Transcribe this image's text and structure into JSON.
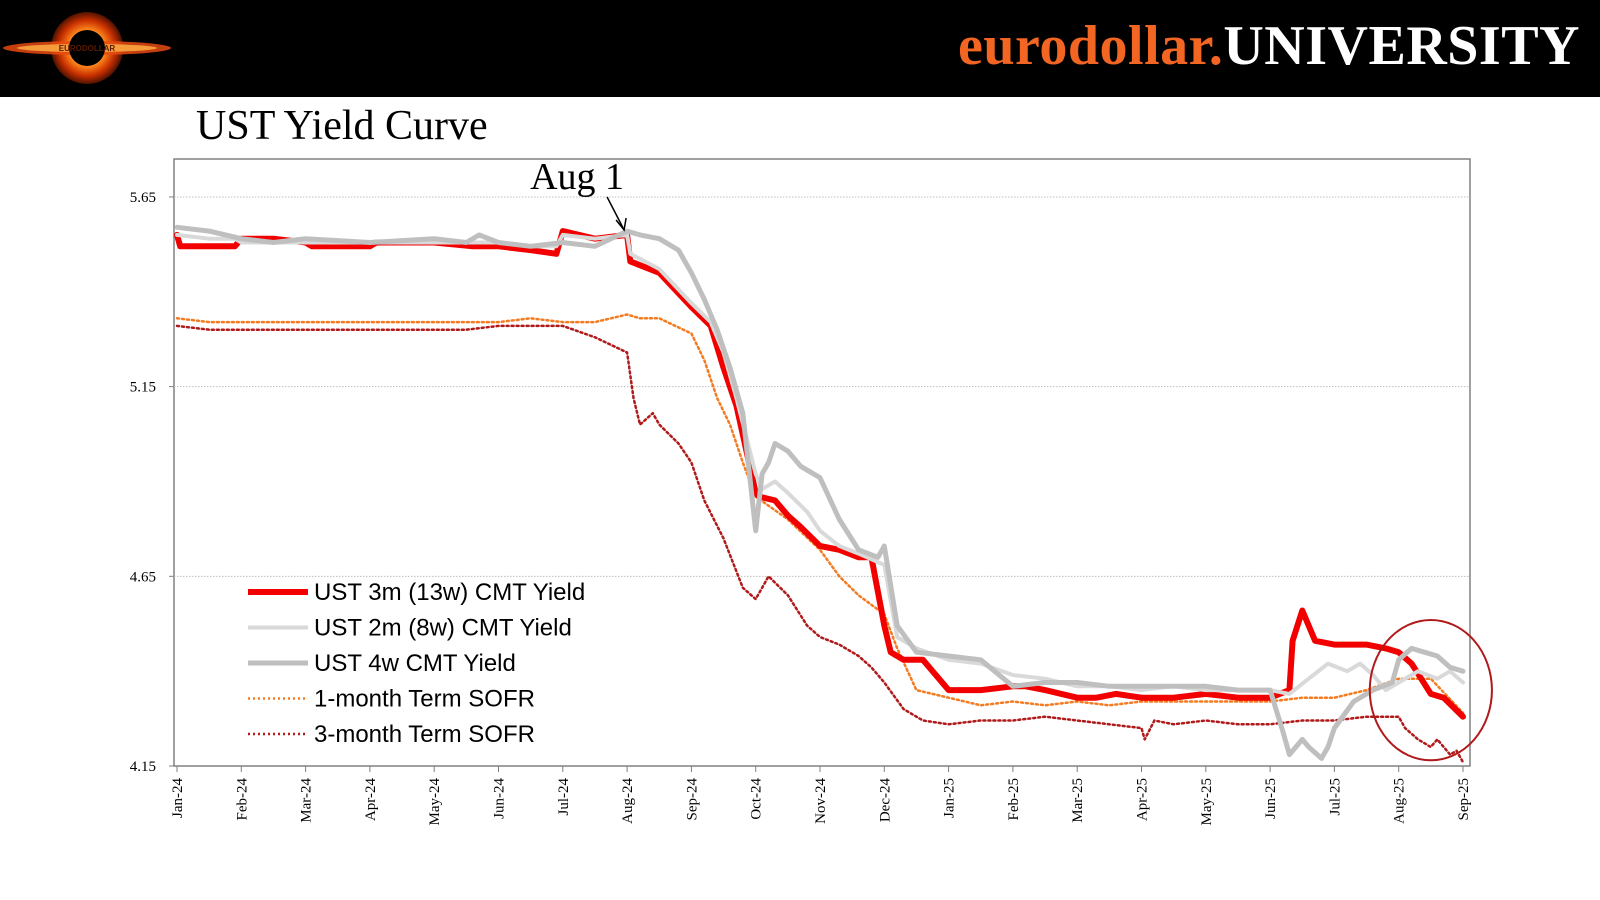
{
  "header": {
    "brand_part1": "eurodollar.",
    "brand_part2": "UNIVERSITY",
    "logo_text": "EURODOLLAR"
  },
  "colors": {
    "brand_orange": "#f26522",
    "ust3m": "#f20000",
    "ust2m": "#d9d9d9",
    "ust4w": "#bfbfbf",
    "sofr1m": "#f47b20",
    "sofr3m": "#b01a1a"
  },
  "chart_data": {
    "type": "line",
    "title": "UST Yield Curve",
    "annotation": "Aug 1",
    "y_range": [
      4.15,
      5.75
    ],
    "y_ticks": [
      4.15,
      4.65,
      5.15,
      5.65
    ],
    "y_tick_labels": [
      "4.15",
      "4.65",
      "5.15",
      "5.65"
    ],
    "x_ticks": [
      "Jan-24",
      "Feb-24",
      "Mar-24",
      "Apr-24",
      "May-24",
      "Jun-24",
      "Jul-24",
      "Aug-24",
      "Sep-24",
      "Oct-24",
      "Nov-24",
      "Dec-24",
      "Jan-25",
      "Feb-25",
      "Mar-25",
      "Apr-25",
      "May-25",
      "Jun-25",
      "Jul-25",
      "Aug-25",
      "Sep-25"
    ],
    "x_positions": [
      0,
      1,
      2,
      3,
      4,
      5,
      6,
      7,
      8,
      9,
      10,
      11,
      12,
      13,
      14,
      15,
      16,
      17,
      18,
      19,
      20
    ],
    "annotation_x": 7.0,
    "annotation_y": 5.555,
    "highlight": {
      "x_center": 19.5,
      "y_center": 4.35,
      "x_radius": 0.95,
      "y_radius": 0.185
    },
    "series": [
      {
        "name": "UST 3m (13w) CMT Yield",
        "x": [
          0,
          0.05,
          0.5,
          0.9,
          1.0,
          1.5,
          2.0,
          2.1,
          3.0,
          3.1,
          4.0,
          4.6,
          5.0,
          5.5,
          5.9,
          6.0,
          6.5,
          7.0,
          7.05,
          7.5,
          8.0,
          8.3,
          8.5,
          8.7,
          9.0,
          9.05,
          9.3,
          9.5,
          9.7,
          10.0,
          10.3,
          10.6,
          10.8,
          11.0,
          11.1,
          11.3,
          11.6,
          12.0,
          12.5,
          13.0,
          13.2,
          13.5,
          14.0,
          14.3,
          14.6,
          15.0,
          15.5,
          16.0,
          16.5,
          17.0,
          17.3,
          17.35,
          17.5,
          17.7,
          18.0,
          18.5,
          18.8,
          19.0,
          19.2,
          19.35,
          19.5,
          19.7,
          20.0
        ],
        "y": [
          5.55,
          5.52,
          5.52,
          5.52,
          5.54,
          5.54,
          5.53,
          5.52,
          5.52,
          5.53,
          5.53,
          5.52,
          5.52,
          5.51,
          5.5,
          5.56,
          5.54,
          5.55,
          5.48,
          5.45,
          5.36,
          5.31,
          5.2,
          5.1,
          4.87,
          4.86,
          4.85,
          4.81,
          4.78,
          4.73,
          4.72,
          4.7,
          4.7,
          4.52,
          4.45,
          4.43,
          4.43,
          4.35,
          4.35,
          4.36,
          4.36,
          4.35,
          4.33,
          4.33,
          4.34,
          4.33,
          4.33,
          4.34,
          4.33,
          4.33,
          4.35,
          4.48,
          4.56,
          4.48,
          4.47,
          4.47,
          4.46,
          4.45,
          4.42,
          4.38,
          4.34,
          4.33,
          4.28
        ]
      },
      {
        "name": "UST 2m (8w) CMT Yield",
        "x": [
          0,
          0.5,
          0.9,
          1.0,
          1.5,
          2.0,
          3.0,
          4.0,
          5.0,
          5.5,
          5.9,
          6.0,
          6.5,
          7.0,
          7.05,
          7.5,
          8.0,
          8.3,
          8.5,
          8.7,
          9.0,
          9.1,
          9.3,
          9.5,
          9.8,
          10.0,
          10.3,
          10.6,
          11.0,
          11.2,
          11.5,
          12.0,
          12.5,
          13.0,
          13.5,
          14.0,
          14.5,
          15.0,
          15.5,
          16.0,
          16.5,
          17.0,
          17.3,
          17.6,
          17.9,
          18.2,
          18.4,
          18.6,
          18.8,
          19.0,
          19.3,
          19.6,
          19.8,
          20.0
        ],
        "y": [
          5.55,
          5.54,
          5.54,
          5.53,
          5.53,
          5.53,
          5.53,
          5.53,
          5.53,
          5.52,
          5.52,
          5.55,
          5.54,
          5.55,
          5.5,
          5.46,
          5.37,
          5.32,
          5.24,
          5.12,
          4.92,
          4.88,
          4.9,
          4.87,
          4.82,
          4.77,
          4.73,
          4.71,
          4.68,
          4.49,
          4.46,
          4.43,
          4.42,
          4.39,
          4.38,
          4.36,
          4.36,
          4.35,
          4.36,
          4.35,
          4.35,
          4.35,
          4.34,
          4.38,
          4.42,
          4.4,
          4.42,
          4.39,
          4.35,
          4.37,
          4.4,
          4.38,
          4.4,
          4.37
        ]
      },
      {
        "name": "UST 4w CMT Yield",
        "x": [
          0,
          0.5,
          1.0,
          1.5,
          2.0,
          3.0,
          4.0,
          4.5,
          4.7,
          5.0,
          5.5,
          6.0,
          6.5,
          7.0,
          7.2,
          7.5,
          7.8,
          8.0,
          8.2,
          8.4,
          8.6,
          8.8,
          9.0,
          9.1,
          9.2,
          9.3,
          9.5,
          9.7,
          10.0,
          10.3,
          10.6,
          10.9,
          11.0,
          11.2,
          11.5,
          12.0,
          12.5,
          13.0,
          13.5,
          14.0,
          14.5,
          15.0,
          15.5,
          16.0,
          16.5,
          17.0,
          17.2,
          17.3,
          17.5,
          17.6,
          17.8,
          17.9,
          18.0,
          18.3,
          18.6,
          18.9,
          19.0,
          19.2,
          19.4,
          19.6,
          19.8,
          20.0
        ],
        "y": [
          5.57,
          5.56,
          5.54,
          5.53,
          5.54,
          5.53,
          5.54,
          5.53,
          5.55,
          5.53,
          5.52,
          5.53,
          5.52,
          5.56,
          5.55,
          5.54,
          5.51,
          5.45,
          5.38,
          5.3,
          5.2,
          5.08,
          4.77,
          4.92,
          4.95,
          5.0,
          4.98,
          4.94,
          4.91,
          4.8,
          4.72,
          4.7,
          4.73,
          4.52,
          4.45,
          4.44,
          4.43,
          4.36,
          4.37,
          4.37,
          4.36,
          4.36,
          4.36,
          4.36,
          4.35,
          4.35,
          4.24,
          4.18,
          4.22,
          4.2,
          4.17,
          4.2,
          4.25,
          4.32,
          4.35,
          4.37,
          4.43,
          4.46,
          4.45,
          4.44,
          4.41,
          4.4
        ]
      },
      {
        "name": "1-month Term SOFR",
        "x": [
          0,
          0.5,
          1.0,
          1.5,
          2.0,
          2.5,
          3.0,
          3.5,
          4.0,
          4.5,
          5.0,
          5.5,
          6.0,
          6.5,
          7.0,
          7.2,
          7.5,
          8.0,
          8.2,
          8.4,
          8.6,
          8.8,
          9.0,
          9.5,
          10.0,
          10.3,
          10.6,
          11.0,
          11.2,
          11.5,
          12.0,
          12.5,
          13.0,
          13.5,
          14.0,
          14.5,
          15.0,
          15.5,
          16.0,
          16.5,
          17.0,
          17.5,
          18.0,
          18.5,
          19.0,
          19.5,
          20.0
        ],
        "y": [
          5.33,
          5.32,
          5.32,
          5.32,
          5.32,
          5.32,
          5.32,
          5.32,
          5.32,
          5.32,
          5.32,
          5.33,
          5.32,
          5.32,
          5.34,
          5.33,
          5.33,
          5.29,
          5.22,
          5.12,
          5.05,
          4.95,
          4.86,
          4.8,
          4.72,
          4.65,
          4.6,
          4.55,
          4.46,
          4.35,
          4.33,
          4.31,
          4.32,
          4.31,
          4.32,
          4.31,
          4.32,
          4.32,
          4.32,
          4.32,
          4.32,
          4.33,
          4.33,
          4.35,
          4.38,
          4.38,
          4.29
        ]
      },
      {
        "name": "3-month Term SOFR",
        "x": [
          0,
          0.5,
          1.0,
          1.5,
          2.0,
          2.5,
          3.0,
          3.5,
          4.0,
          4.5,
          5.0,
          5.5,
          6.0,
          6.5,
          7.0,
          7.05,
          7.1,
          7.2,
          7.4,
          7.5,
          7.8,
          8.0,
          8.2,
          8.5,
          8.8,
          9.0,
          9.2,
          9.5,
          9.8,
          10.0,
          10.3,
          10.6,
          10.8,
          11.0,
          11.3,
          11.6,
          12.0,
          12.5,
          13.0,
          13.5,
          14.0,
          14.5,
          15.0,
          15.05,
          15.2,
          15.5,
          16.0,
          16.5,
          17.0,
          17.5,
          18.0,
          18.5,
          19.0,
          19.1,
          19.3,
          19.5,
          19.6,
          19.8,
          19.9,
          20.0
        ],
        "y": [
          5.31,
          5.3,
          5.3,
          5.3,
          5.3,
          5.3,
          5.3,
          5.3,
          5.3,
          5.3,
          5.31,
          5.31,
          5.31,
          5.28,
          5.24,
          5.18,
          5.12,
          5.05,
          5.08,
          5.05,
          5.0,
          4.95,
          4.85,
          4.75,
          4.62,
          4.59,
          4.65,
          4.6,
          4.52,
          4.49,
          4.47,
          4.44,
          4.41,
          4.37,
          4.3,
          4.27,
          4.26,
          4.27,
          4.27,
          4.28,
          4.27,
          4.26,
          4.25,
          4.22,
          4.27,
          4.26,
          4.27,
          4.26,
          4.26,
          4.27,
          4.27,
          4.28,
          4.28,
          4.25,
          4.22,
          4.2,
          4.22,
          4.18,
          4.19,
          4.16
        ]
      }
    ]
  }
}
